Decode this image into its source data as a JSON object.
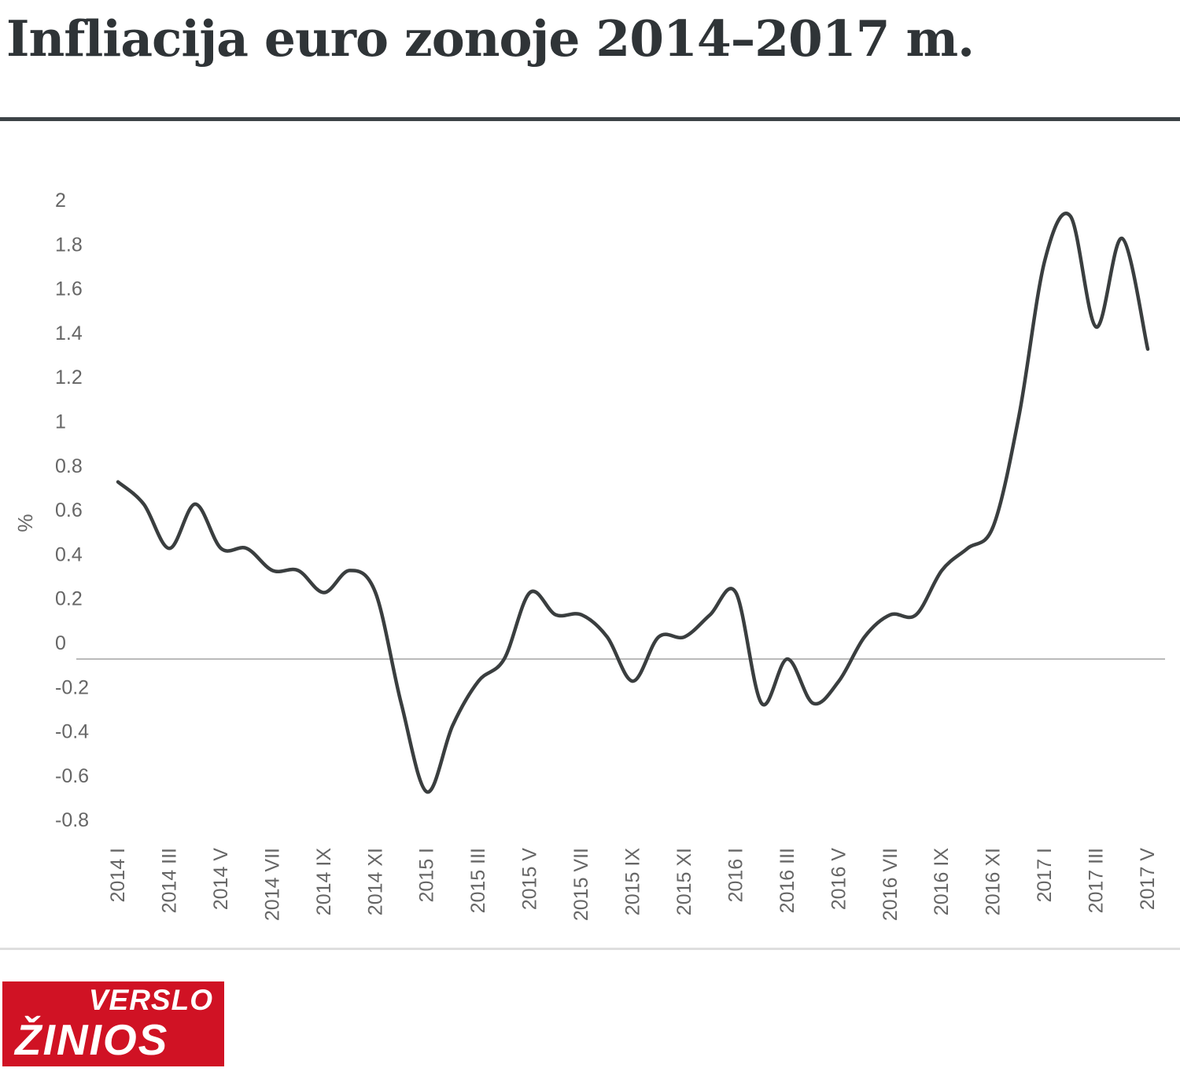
{
  "header": {
    "title": "Infliacija euro zonoje 2014–2017 m.",
    "title_color": "#2f3437",
    "rule_color": "#3d4347"
  },
  "chart_data": {
    "type": "line",
    "title": "Infliacija euro zonoje 2014–2017 m.",
    "xlabel": "",
    "ylabel": "%",
    "ylim": [
      -0.8,
      2
    ],
    "grid": "zero-line-only",
    "legend": "none",
    "line_color": "#3a3e3f",
    "zero_line_color": "#a3a3a3",
    "tick_color": "#666666",
    "y_ticks": [
      "2",
      "1.8",
      "1.6",
      "1.4",
      "1.2",
      "1",
      "0.8",
      "0.6",
      "0.4",
      "0.2",
      "0",
      "-0.2",
      "-0.4",
      "-0.6",
      "-0.8"
    ],
    "x_tick_labels": [
      "2014 I",
      "2014 III",
      "2014 V",
      "2014 VII",
      "2014 IX",
      "2014 XI",
      "2015 I",
      "2015 III",
      "2015 V",
      "2015 VII",
      "2015 IX",
      "2015 XI",
      "2016 I",
      "2016 III",
      "2016 V",
      "2016 VII",
      "2016 IX",
      "2016 XI",
      "2017 I",
      "2017 III",
      "2017 V"
    ],
    "x": [
      "2014 I",
      "2014 II",
      "2014 III",
      "2014 IV",
      "2014 V",
      "2014 VI",
      "2014 VII",
      "2014 VIII",
      "2014 IX",
      "2014 X",
      "2014 XI",
      "2014 XII",
      "2015 I",
      "2015 II",
      "2015 III",
      "2015 IV",
      "2015 V",
      "2015 VI",
      "2015 VII",
      "2015 VIII",
      "2015 IX",
      "2015 X",
      "2015 XI",
      "2015 XII",
      "2016 I",
      "2016 II",
      "2016 III",
      "2016 IV",
      "2016 V",
      "2016 VI",
      "2016 VII",
      "2016 VIII",
      "2016 IX",
      "2016 X",
      "2016 XI",
      "2016 XII",
      "2017 I",
      "2017 II",
      "2017 III",
      "2017 IV",
      "2017 V"
    ],
    "series": [
      {
        "name": "Infliacija euro zonoje, %",
        "values": [
          0.8,
          0.7,
          0.5,
          0.7,
          0.5,
          0.5,
          0.4,
          0.4,
          0.3,
          0.4,
          0.3,
          -0.2,
          -0.6,
          -0.3,
          -0.1,
          0.0,
          0.3,
          0.2,
          0.2,
          0.1,
          -0.1,
          0.1,
          0.1,
          0.2,
          0.3,
          -0.2,
          0.0,
          -0.2,
          -0.1,
          0.1,
          0.2,
          0.2,
          0.4,
          0.5,
          0.6,
          1.1,
          1.8,
          2.0,
          1.5,
          1.9,
          1.4
        ]
      }
    ]
  },
  "footer": {
    "divider_color": "#dedede",
    "logo": {
      "line1": "VERSLO",
      "line2": "ŽINIOS",
      "bg": "#d01224",
      "text_color": "#ffffff"
    }
  }
}
